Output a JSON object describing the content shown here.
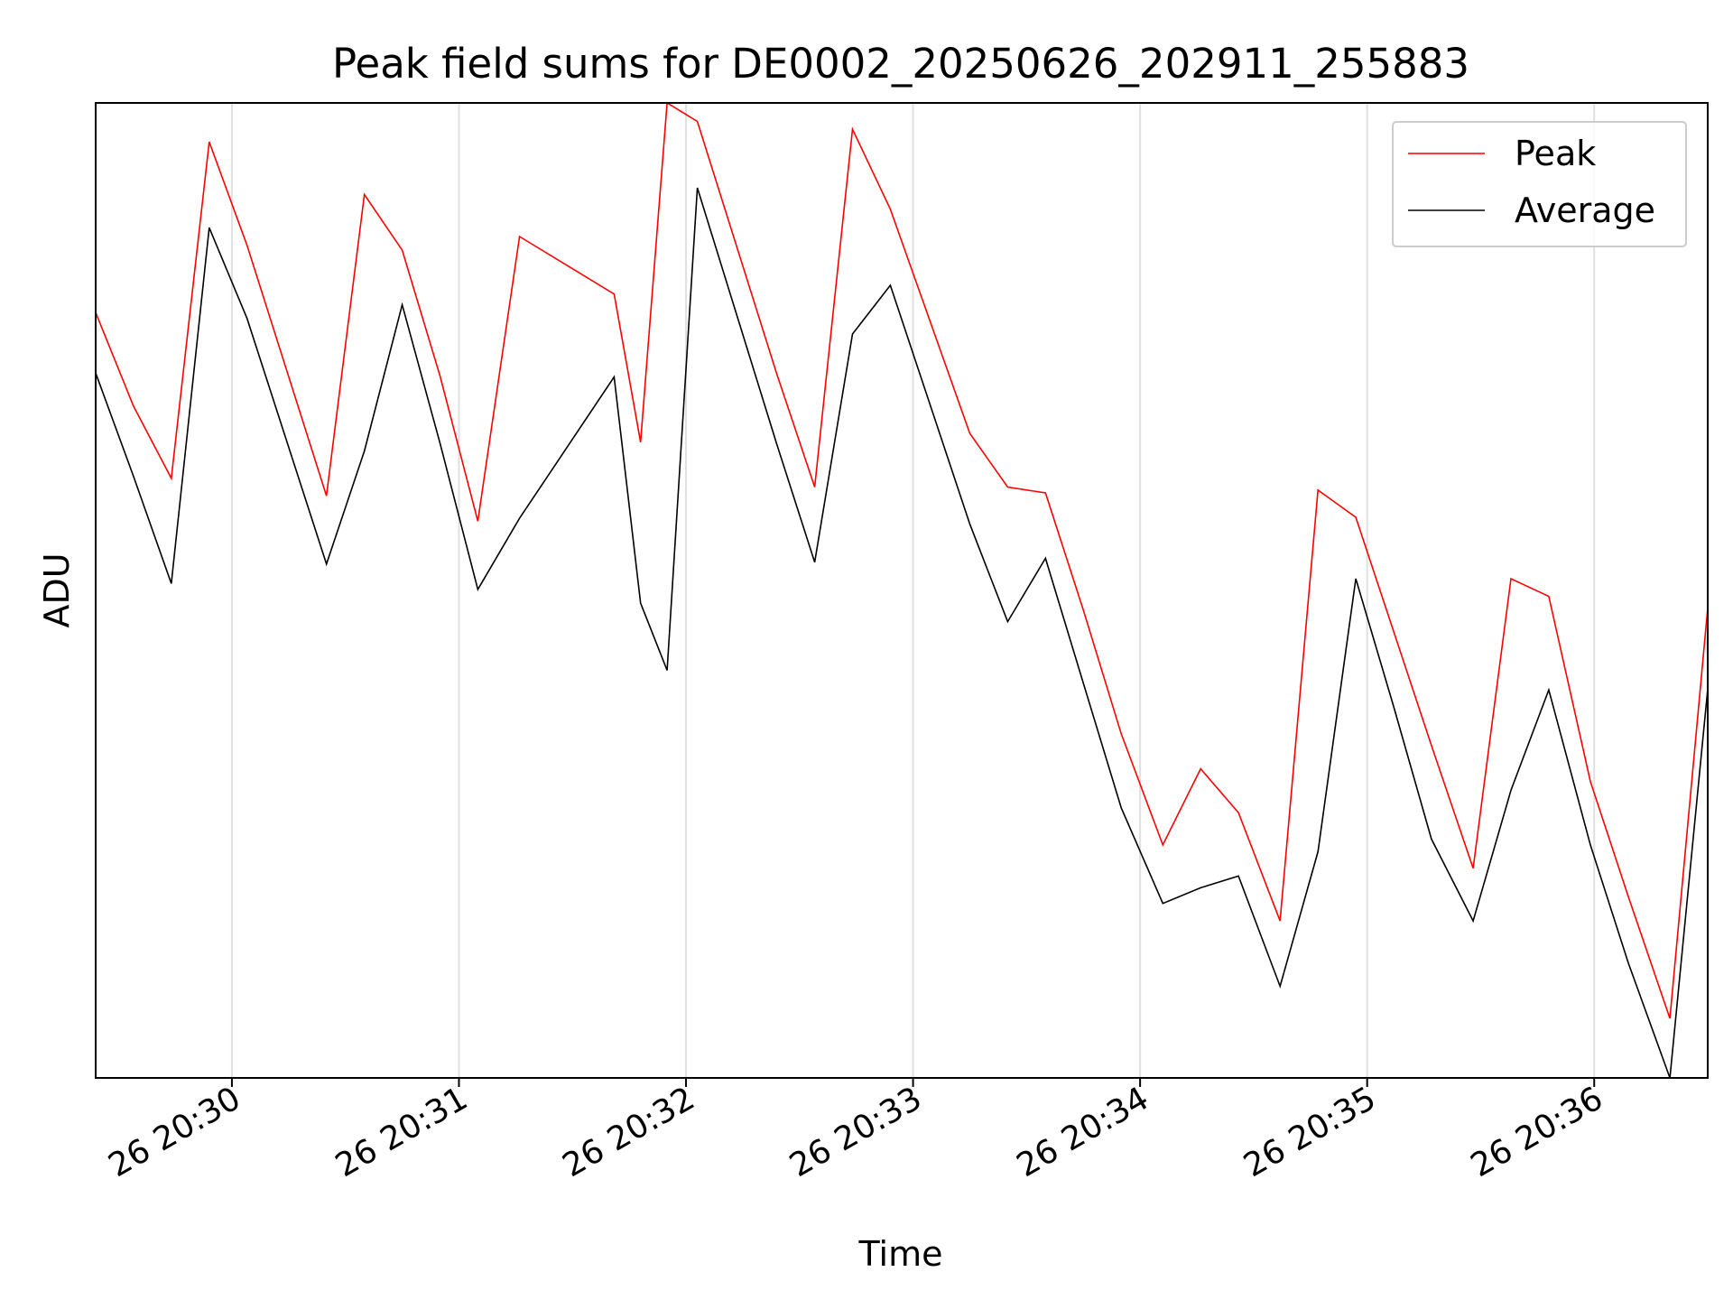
{
  "chart_data": {
    "type": "line",
    "title": "Peak field sums for DE0002_20250626_202911_255883",
    "xlabel": "Time",
    "ylabel": "ADU",
    "x_unit": "minutes (20:29:24 to 20:36:30 on day 26)",
    "x_ticks": [
      {
        "x": "2025-06-26 20:30",
        "label": "26 20:30"
      },
      {
        "x": "2025-06-26 20:31",
        "label": "26 20:31"
      },
      {
        "x": "2025-06-26 20:32",
        "label": "26 20:32"
      },
      {
        "x": "2025-06-26 20:33",
        "label": "26 20:33"
      },
      {
        "x": "2025-06-26 20:34",
        "label": "26 20:34"
      },
      {
        "x": "2025-06-26 20:35",
        "label": "26 20:35"
      },
      {
        "x": "2025-06-26 20:36",
        "label": "26 20:36"
      }
    ],
    "x": [
      "20:29:24",
      "20:29:34",
      "20:29:44",
      "20:29:54",
      "20:30:04",
      "20:30:25",
      "20:30:35",
      "20:30:45",
      "20:30:55",
      "20:31:05",
      "20:31:16",
      "20:31:41",
      "20:31:48",
      "20:31:55",
      "20:32:03",
      "20:32:24",
      "20:32:34",
      "20:32:44",
      "20:32:54",
      "20:33:15",
      "20:33:25",
      "20:33:35",
      "20:33:45",
      "20:33:55",
      "20:34:06",
      "20:34:16",
      "20:34:26",
      "20:34:37",
      "20:34:47",
      "20:34:57",
      "20:35:07",
      "20:35:17",
      "20:35:28",
      "20:35:38",
      "20:35:48",
      "20:35:59",
      "20:36:09",
      "20:36:20",
      "20:36:30"
    ],
    "y_ticks_visible": false,
    "ylim": [
      0,
      1
    ],
    "grid": "vertical",
    "legend_position": "top-right",
    "series": [
      {
        "name": "Peak",
        "color": "#ff0000",
        "values": [
          0.785,
          0.689,
          0.615,
          0.96,
          0.854,
          0.597,
          0.906,
          0.849,
          0.72,
          0.571,
          0.863,
          0.804,
          0.652,
          1.0,
          0.981,
          0.722,
          0.606,
          0.973,
          0.891,
          0.661,
          0.606,
          0.6,
          0.48,
          0.353,
          0.239,
          0.317,
          0.272,
          0.161,
          0.603,
          0.575,
          0.458,
          0.341,
          0.215,
          0.512,
          0.494,
          0.304,
          0.186,
          0.061,
          0.482
        ]
      },
      {
        "name": "Average",
        "color": "#000000",
        "values": [
          0.723,
          0.617,
          0.507,
          0.872,
          0.779,
          0.527,
          0.643,
          0.793,
          0.651,
          0.501,
          0.574,
          0.719,
          0.487,
          0.418,
          0.913,
          0.65,
          0.529,
          0.763,
          0.813,
          0.568,
          0.468,
          0.533,
          0.405,
          0.277,
          0.179,
          0.195,
          0.207,
          0.094,
          0.232,
          0.512,
          0.381,
          0.245,
          0.161,
          0.295,
          0.398,
          0.239,
          0.118,
          0.0,
          0.399
        ]
      }
    ]
  }
}
